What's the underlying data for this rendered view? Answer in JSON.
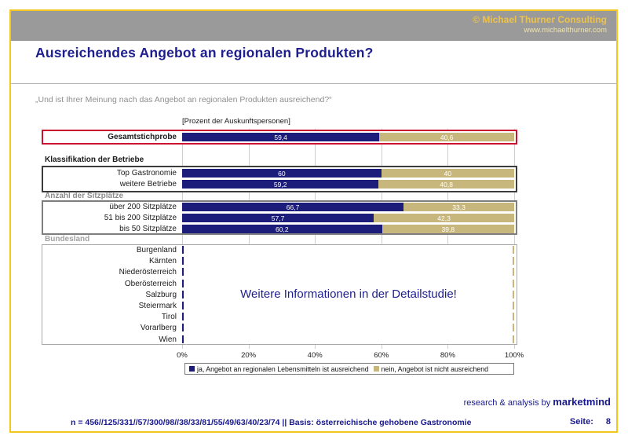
{
  "header": {
    "copyright": "© Michael Thurner Consulting",
    "website": "www.michaelthurner.com"
  },
  "title": "Ausreichendes Angebot an regionalen Produkten?",
  "question": "„Und ist Ihrer Meinung nach das Angebot an regionalen Produkten ausreichend?“",
  "chart_data": {
    "type": "bar",
    "orientation": "horizontal-stacked",
    "unit_note": "[Prozent der Auskunftspersonen]",
    "xlim": [
      0,
      100
    ],
    "x_ticks": [
      "0%",
      "20%",
      "40%",
      "60%",
      "80%",
      "100%"
    ],
    "colors": {
      "ja": "#1c1c7a",
      "nein": "#c8b77c"
    },
    "groups": [
      {
        "name": "",
        "rows": [
          {
            "label": "Gesamtstichprobe",
            "ja": 59.4,
            "nein": 40.6,
            "ja_text": "59,4",
            "nein_text": "40,6"
          }
        ]
      },
      {
        "name": "Klassifikation der Betriebe",
        "rows": [
          {
            "label": "Top Gastronomie",
            "ja": 60,
            "nein": 40,
            "ja_text": "60",
            "nein_text": "40"
          },
          {
            "label": "weitere Betriebe",
            "ja": 59.2,
            "nein": 40.8,
            "ja_text": "59,2",
            "nein_text": "40,8"
          }
        ]
      },
      {
        "name": "Anzahl der Sitzplätze",
        "rows": [
          {
            "label": "über 200 Sitzplätze",
            "ja": 66.7,
            "nein": 33.3,
            "ja_text": "66,7",
            "nein_text": "33,3"
          },
          {
            "label": "51 bis 200 Sitzplätze",
            "ja": 57.7,
            "nein": 42.3,
            "ja_text": "57,7",
            "nein_text": "42,3"
          },
          {
            "label": "bis 50 Sitzplätze",
            "ja": 60.2,
            "nein": 39.8,
            "ja_text": "60,2",
            "nein_text": "39,8"
          }
        ]
      },
      {
        "name": "Bundesland",
        "rows": [
          {
            "label": "Burgenland"
          },
          {
            "label": "Kärnten"
          },
          {
            "label": "Niederösterreich"
          },
          {
            "label": "Oberösterreich"
          },
          {
            "label": "Salzburg"
          },
          {
            "label": "Steiermark"
          },
          {
            "label": "Tirol"
          },
          {
            "label": "Vorarlberg"
          },
          {
            "label": "Wien"
          }
        ],
        "note": "Weitere Informationen in der Detailstudie!"
      }
    ],
    "legend": [
      {
        "label": "ja, Angebot an regionalen Lebensmitteln ist ausreichend",
        "color": "#1c1c7a"
      },
      {
        "label": "nein, Angebot ist nicht ausreichend",
        "color": "#c8b77c"
      }
    ]
  },
  "footer": {
    "brand_prefix": "research & analysis by ",
    "brand_name": "marketmind",
    "n_line": "n = 456//125/331//57/300/98//38/33/81/55/49/63/40/23/74 || Basis: österreichische gehobene Gastronomie",
    "page_label": "Seite:",
    "page_number": "8"
  }
}
